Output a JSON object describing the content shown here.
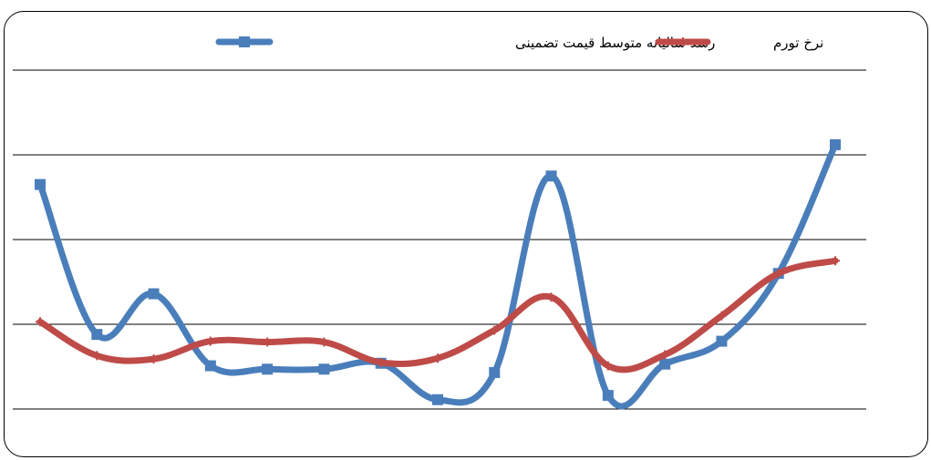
{
  "chart_data": {
    "type": "line",
    "title": "",
    "xlabel": "",
    "ylabel": "",
    "ylim": [
      0,
      5
    ],
    "grid": true,
    "legend_position": "top",
    "x": [
      1,
      2,
      3,
      4,
      5,
      6,
      7,
      8,
      9,
      10,
      11,
      12,
      13,
      14,
      15
    ],
    "series": [
      {
        "name": "رشد سالیانه متوسط قیمت تضمینی",
        "color": "#4a7ebb",
        "marker": "square",
        "values": [
          2.65,
          0.88,
          1.36,
          0.51,
          0.47,
          0.47,
          0.54,
          0.11,
          0.43,
          2.75,
          0.16,
          0.53,
          0.8,
          1.6,
          3.12
        ]
      },
      {
        "name": "نرخ تورم",
        "color": "#be4b48",
        "marker": "plus",
        "values": [
          1.03,
          0.63,
          0.59,
          0.8,
          0.79,
          0.79,
          0.55,
          0.6,
          0.93,
          1.32,
          0.51,
          0.64,
          1.1,
          1.6,
          1.75
        ]
      }
    ]
  }
}
